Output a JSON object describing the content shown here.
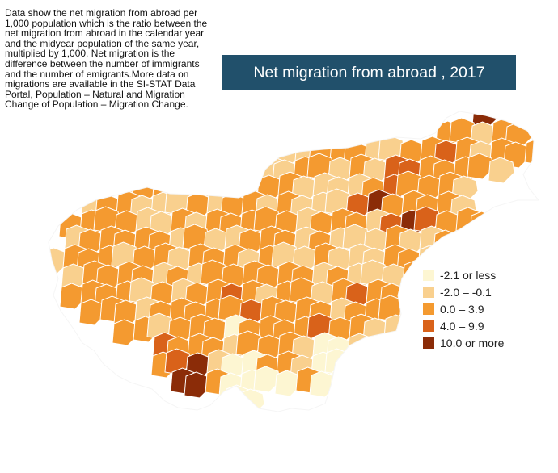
{
  "description": "Data show the net migration from abroad per 1,000 population which is the ratio between the net migration from abroad in the calendar year and the midyear population of the same year, multiplied by 1,000. Net migration is the difference between the number of immigrants and the number of emigrants.More data on migrations are available in the SI-STAT Data Portal, Population – Natural and Migration Change of Population – Migration Change.",
  "title": "Net migration from abroad , 2017",
  "legend": [
    {
      "label": "-2.1 or less",
      "color": "#fdf6d2"
    },
    {
      "label": "-2.0 – -0.1",
      "color": "#f9d08e"
    },
    {
      "label": "0.0 – 3.9",
      "color": "#f49a30"
    },
    {
      "label": "4.0 – 9.9",
      "color": "#d9621a"
    },
    {
      "label": "10.0 or more",
      "color": "#8b2c08"
    }
  ],
  "map": {
    "border_color": "#ffffff"
  }
}
